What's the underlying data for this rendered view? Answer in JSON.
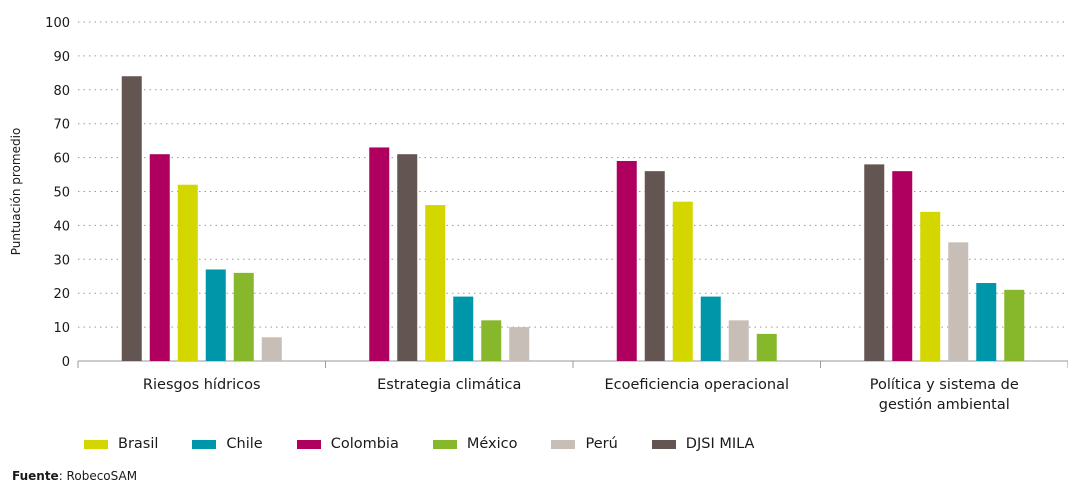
{
  "chart_data": {
    "type": "bar",
    "ylabel": "Puntuación promedio",
    "ylim": [
      0,
      100
    ],
    "yticks": [
      0,
      10,
      20,
      30,
      40,
      50,
      60,
      70,
      80,
      90,
      100
    ],
    "grid": "dotted horizontal",
    "legend_position": "bottom",
    "categories": [
      {
        "label": [
          "Riesgos hídricos"
        ],
        "bars": [
          {
            "series": "DJSI MILA",
            "value": 84
          },
          {
            "series": "Colombia",
            "value": 61
          },
          {
            "series": "Brasil",
            "value": 52
          },
          {
            "series": "Chile",
            "value": 27
          },
          {
            "series": "México",
            "value": 26
          },
          {
            "series": "Perú",
            "value": 7
          }
        ]
      },
      {
        "label": [
          "Estrategia climática"
        ],
        "bars": [
          {
            "series": "Colombia",
            "value": 63
          },
          {
            "series": "DJSI MILA",
            "value": 61
          },
          {
            "series": "Brasil",
            "value": 46
          },
          {
            "series": "Chile",
            "value": 19
          },
          {
            "series": "México",
            "value": 12
          },
          {
            "series": "Perú",
            "value": 10
          }
        ]
      },
      {
        "label": [
          "Ecoeficiencia operacional"
        ],
        "bars": [
          {
            "series": "Colombia",
            "value": 59
          },
          {
            "series": "DJSI MILA",
            "value": 56
          },
          {
            "series": "Brasil",
            "value": 47
          },
          {
            "series": "Chile",
            "value": 19
          },
          {
            "series": "Perú",
            "value": 12
          },
          {
            "series": "México",
            "value": 8
          }
        ]
      },
      {
        "label": [
          "Política y sistema de",
          "gestión ambiental"
        ],
        "bars": [
          {
            "series": "DJSI MILA",
            "value": 58
          },
          {
            "series": "Colombia",
            "value": 56
          },
          {
            "series": "Brasil",
            "value": 44
          },
          {
            "series": "Perú",
            "value": 35
          },
          {
            "series": "Chile",
            "value": 23
          },
          {
            "series": "México",
            "value": 21
          }
        ]
      }
    ],
    "series": [
      {
        "name": "Brasil",
        "color": "#d4d600"
      },
      {
        "name": "Chile",
        "color": "#0096aa"
      },
      {
        "name": "Colombia",
        "color": "#b0005f"
      },
      {
        "name": "México",
        "color": "#87b72a"
      },
      {
        "name": "Perú",
        "color": "#c7bfb7"
      },
      {
        "name": "DJSI MILA",
        "color": "#635551"
      }
    ]
  },
  "source": {
    "label": "Fuente",
    "text": ": RobecoSAM"
  }
}
